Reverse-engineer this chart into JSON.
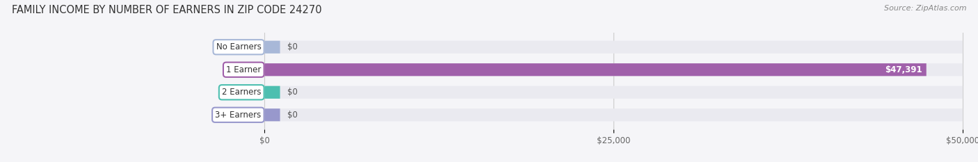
{
  "title": "FAMILY INCOME BY NUMBER OF EARNERS IN ZIP CODE 24270",
  "source": "Source: ZipAtlas.com",
  "categories": [
    "No Earners",
    "1 Earner",
    "2 Earners",
    "3+ Earners"
  ],
  "values": [
    0,
    47391,
    0,
    0
  ],
  "bar_colors": [
    "#a8b8d8",
    "#a060aa",
    "#4dbfb0",
    "#9898cc"
  ],
  "bar_bg_color": "#eaeaf0",
  "xlim_max": 50000,
  "xtick_labels": [
    "$0",
    "$25,000",
    "$50,000"
  ],
  "value_labels": [
    "$0",
    "$47,391",
    "$0",
    "$0"
  ],
  "title_fontsize": 10.5,
  "source_fontsize": 8,
  "bar_height": 0.56,
  "fig_bg_color": "#f5f5f8"
}
